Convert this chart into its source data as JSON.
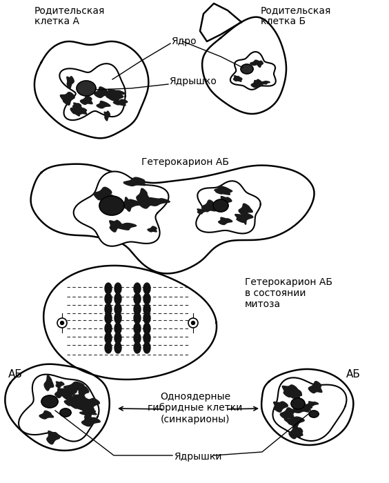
{
  "bg_color": "#ffffff",
  "line_color": "#000000",
  "labels": {
    "parent_A": "Родительская\nклетка А",
    "parent_B": "Родительская\nклетка Б",
    "nucleus": "Ядро",
    "nucleolus": "Ядрышко",
    "heterokaryon": "Гетерокарион АБ",
    "heterokaryon_mitosis": "Гетерокарион АБ\nв состоянии\nмитоза",
    "hybrid_cells": "Одноядерные\nгибридные клетки\n(синкарионы)",
    "nucleoli": "Ядрышки",
    "AB_left": "АБ",
    "AB_right": "АБ"
  },
  "figsize": [
    5.64,
    7.0
  ],
  "dpi": 100
}
